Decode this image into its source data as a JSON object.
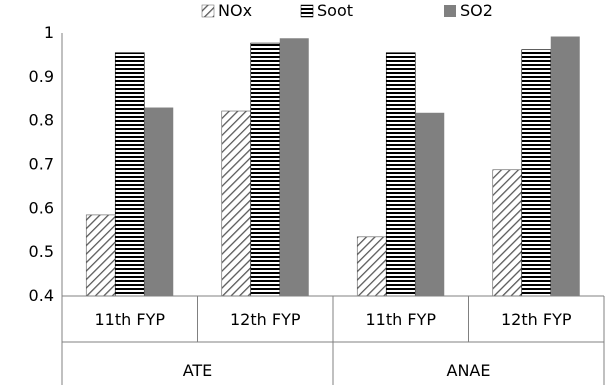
{
  "chart_data": {
    "type": "bar",
    "title": "",
    "xlabel": "",
    "ylabel": "",
    "ylim": [
      0.4,
      1.0
    ],
    "yticks": [
      "0.4",
      "0.5",
      "0.6",
      "0.7",
      "0.8",
      "0.9",
      "1"
    ],
    "groups": [
      {
        "label": "ATE",
        "categories": [
          "11th FYP",
          "12th FYP"
        ]
      },
      {
        "label": "ANAE",
        "categories": [
          "11th FYP",
          "12th FYP"
        ]
      }
    ],
    "categories": [
      "11th FYP",
      "12th FYP",
      "11th FYP",
      "12th FYP"
    ],
    "series": [
      {
        "name": "NOx",
        "values": [
          0.585,
          0.822,
          0.535,
          0.688
        ],
        "pattern": "diagonal",
        "color": "#595959"
      },
      {
        "name": "Soot",
        "values": [
          0.955,
          0.977,
          0.955,
          0.962
        ],
        "pattern": "horizontal",
        "color": "#000000"
      },
      {
        "name": "SO2",
        "values": [
          0.83,
          0.988,
          0.818,
          0.992
        ],
        "pattern": "solid",
        "color": "#808080"
      }
    ],
    "grid": false,
    "legend_position": "top"
  }
}
